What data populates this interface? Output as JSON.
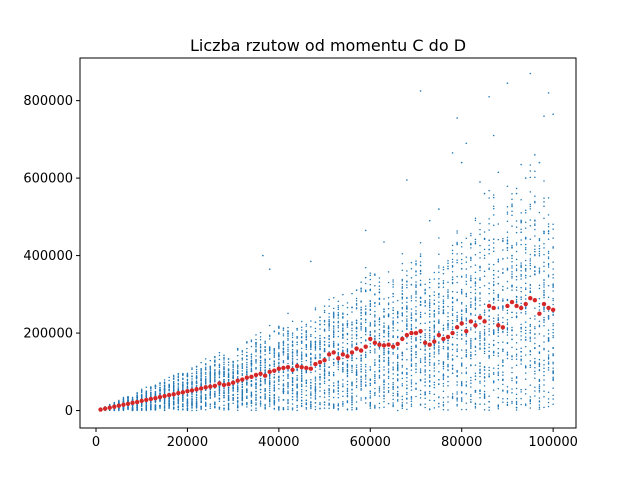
{
  "chart_data": {
    "type": "scatter",
    "title": "Liczba rzutow od momentu C do D",
    "xlabel": "",
    "ylabel": "",
    "xlim": [
      -3500,
      105000
    ],
    "ylim": [
      -45000,
      910000
    ],
    "x_ticks": [
      0,
      20000,
      40000,
      60000,
      80000,
      100000
    ],
    "x_tick_labels": [
      "0",
      "20000",
      "40000",
      "60000",
      "80000",
      "100000"
    ],
    "y_ticks": [
      0,
      200000,
      400000,
      600000,
      800000
    ],
    "y_tick_labels": [
      "0",
      "200000",
      "400000",
      "600000",
      "800000"
    ],
    "grid": false,
    "legend": "none",
    "colors": {
      "raw": "#1f77b4",
      "mean": "#d62728"
    },
    "series": [
      {
        "role": "raw-samples",
        "style": "tiny dots",
        "samples_per_x_estimate": 50,
        "x_start": 1000,
        "x_step": 1000,
        "x_end": 100000,
        "note_visible_shape": "points spread from near 0 up to roughly 2-3x the mean at each x",
        "outliers": [
          [
            36500,
            400000
          ],
          [
            38000,
            365000
          ],
          [
            47000,
            385000
          ],
          [
            59000,
            465000
          ],
          [
            63000,
            435000
          ],
          [
            68000,
            595000
          ],
          [
            71000,
            825000
          ],
          [
            75000,
            520000
          ],
          [
            78000,
            665000
          ],
          [
            79000,
            755000
          ],
          [
            80000,
            640000
          ],
          [
            81000,
            690000
          ],
          [
            85000,
            560000
          ],
          [
            86000,
            810000
          ],
          [
            87000,
            710000
          ],
          [
            88000,
            615000
          ],
          [
            90000,
            845000
          ],
          [
            93000,
            635000
          ],
          [
            94000,
            600000
          ],
          [
            95000,
            870000
          ],
          [
            96000,
            660000
          ],
          [
            97000,
            640000
          ],
          [
            98000,
            760000
          ],
          [
            99000,
            820000
          ],
          [
            100000,
            765000
          ],
          [
            92000,
            560000
          ],
          [
            84000,
            590000
          ],
          [
            73000,
            490000
          ]
        ]
      },
      {
        "role": "mean",
        "style": "red dots",
        "x": [
          1000,
          2000,
          3000,
          4000,
          5000,
          6000,
          7000,
          8000,
          9000,
          10000,
          11000,
          12000,
          13000,
          14000,
          15000,
          16000,
          17000,
          18000,
          19000,
          20000,
          21000,
          22000,
          23000,
          24000,
          25000,
          26000,
          27000,
          28000,
          29000,
          30000,
          31000,
          32000,
          33000,
          34000,
          35000,
          36000,
          37000,
          38000,
          39000,
          40000,
          41000,
          42000,
          43000,
          44000,
          45000,
          46000,
          47000,
          48000,
          49000,
          50000,
          51000,
          52000,
          53000,
          54000,
          55000,
          56000,
          57000,
          58000,
          59000,
          60000,
          61000,
          62000,
          63000,
          64000,
          65000,
          66000,
          67000,
          68000,
          69000,
          70000,
          71000,
          72000,
          73000,
          74000,
          75000,
          76000,
          77000,
          78000,
          79000,
          80000,
          81000,
          82000,
          83000,
          84000,
          85000,
          86000,
          87000,
          88000,
          89000,
          90000,
          91000,
          92000,
          93000,
          94000,
          95000,
          96000,
          97000,
          98000,
          99000,
          100000
        ],
        "y": [
          2500,
          5000,
          7500,
          10000,
          12500,
          15000,
          17500,
          20000,
          22000,
          25000,
          27500,
          30000,
          32000,
          35000,
          37500,
          40000,
          42000,
          45000,
          47000,
          50000,
          52000,
          55000,
          57000,
          60000,
          62000,
          64000,
          70000,
          66000,
          68000,
          72000,
          77000,
          80000,
          85000,
          87000,
          92000,
          95000,
          90000,
          100000,
          103000,
          108000,
          110000,
          112000,
          105000,
          115000,
          112000,
          110000,
          108000,
          120000,
          125000,
          130000,
          145000,
          150000,
          135000,
          145000,
          140000,
          150000,
          160000,
          155000,
          165000,
          185000,
          175000,
          170000,
          168000,
          170000,
          165000,
          172000,
          185000,
          195000,
          200000,
          200000,
          205000,
          175000,
          170000,
          178000,
          195000,
          185000,
          190000,
          200000,
          215000,
          225000,
          205000,
          230000,
          220000,
          240000,
          230000,
          270000,
          265000,
          220000,
          215000,
          270000,
          280000,
          270000,
          265000,
          275000,
          290000,
          285000,
          250000,
          275000,
          265000,
          260000
        ]
      }
    ]
  }
}
